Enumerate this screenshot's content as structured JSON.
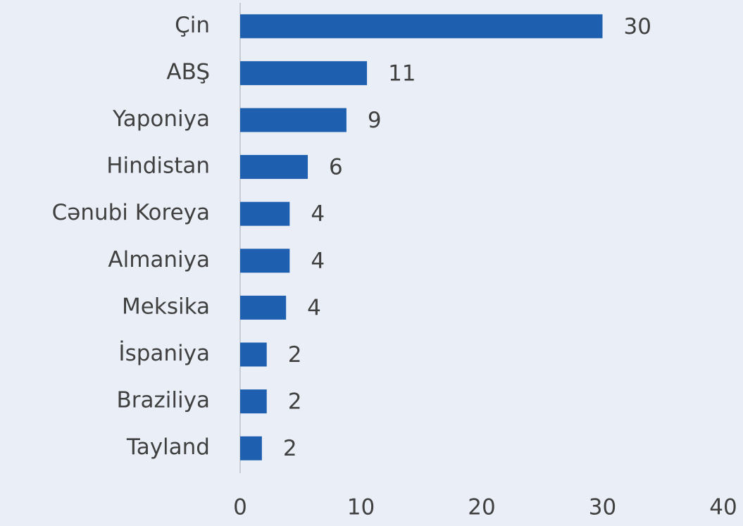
{
  "chart_data": {
    "type": "barh",
    "categories": [
      "Çin",
      "ABŞ",
      "Yaponiya",
      "Hindistan",
      "Cənubi Koreya",
      "Almaniya",
      "Meksika",
      "İspaniya",
      "Braziliya",
      "Tayland"
    ],
    "values": [
      30,
      10.5,
      8.8,
      5.6,
      4.1,
      4.1,
      3.8,
      2.2,
      2.2,
      1.8
    ],
    "value_labels": [
      "30",
      "11",
      "9",
      "6",
      "4",
      "4",
      "4",
      "2",
      "2",
      "2"
    ],
    "color": "#1f5fb0",
    "xlim": [
      0,
      40
    ],
    "xticks": [
      0,
      10,
      20,
      30,
      40
    ],
    "grid": false
  }
}
